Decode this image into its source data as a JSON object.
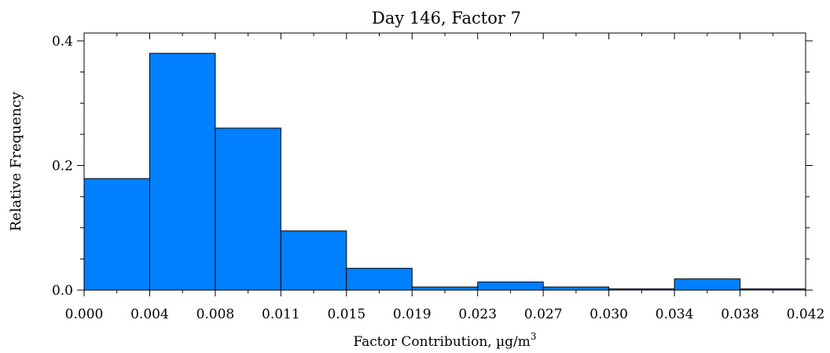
{
  "chart_data": {
    "type": "bar",
    "title": "Day 146, Factor 7",
    "xlabel": "Factor Contribution, µg/m",
    "xlabel_superscript": "3",
    "ylabel": "Relative Frequency",
    "x_tick_labels": [
      "0.000",
      "0.004",
      "0.008",
      "0.011",
      "0.015",
      "0.019",
      "0.023",
      "0.027",
      "0.030",
      "0.034",
      "0.038",
      "0.042"
    ],
    "y_tick_labels": [
      "0.0",
      "0.2",
      "0.4"
    ],
    "xlim": [
      0.0,
      0.042
    ],
    "ylim": [
      0.0,
      0.4
    ],
    "bins": [
      {
        "from": "0.000",
        "to": "0.004",
        "value": 0.179
      },
      {
        "from": "0.004",
        "to": "0.008",
        "value": 0.38
      },
      {
        "from": "0.008",
        "to": "0.011",
        "value": 0.26
      },
      {
        "from": "0.011",
        "to": "0.015",
        "value": 0.095
      },
      {
        "from": "0.015",
        "to": "0.019",
        "value": 0.035
      },
      {
        "from": "0.019",
        "to": "0.023",
        "value": 0.005
      },
      {
        "from": "0.023",
        "to": "0.027",
        "value": 0.013
      },
      {
        "from": "0.027",
        "to": "0.030",
        "value": 0.005
      },
      {
        "from": "0.030",
        "to": "0.034",
        "value": 0.002
      },
      {
        "from": "0.034",
        "to": "0.038",
        "value": 0.018
      },
      {
        "from": "0.038",
        "to": "0.042",
        "value": 0.002
      }
    ],
    "bar_color": "#0080ff",
    "edge_color": "#000000",
    "grid": false,
    "legend": "none"
  }
}
